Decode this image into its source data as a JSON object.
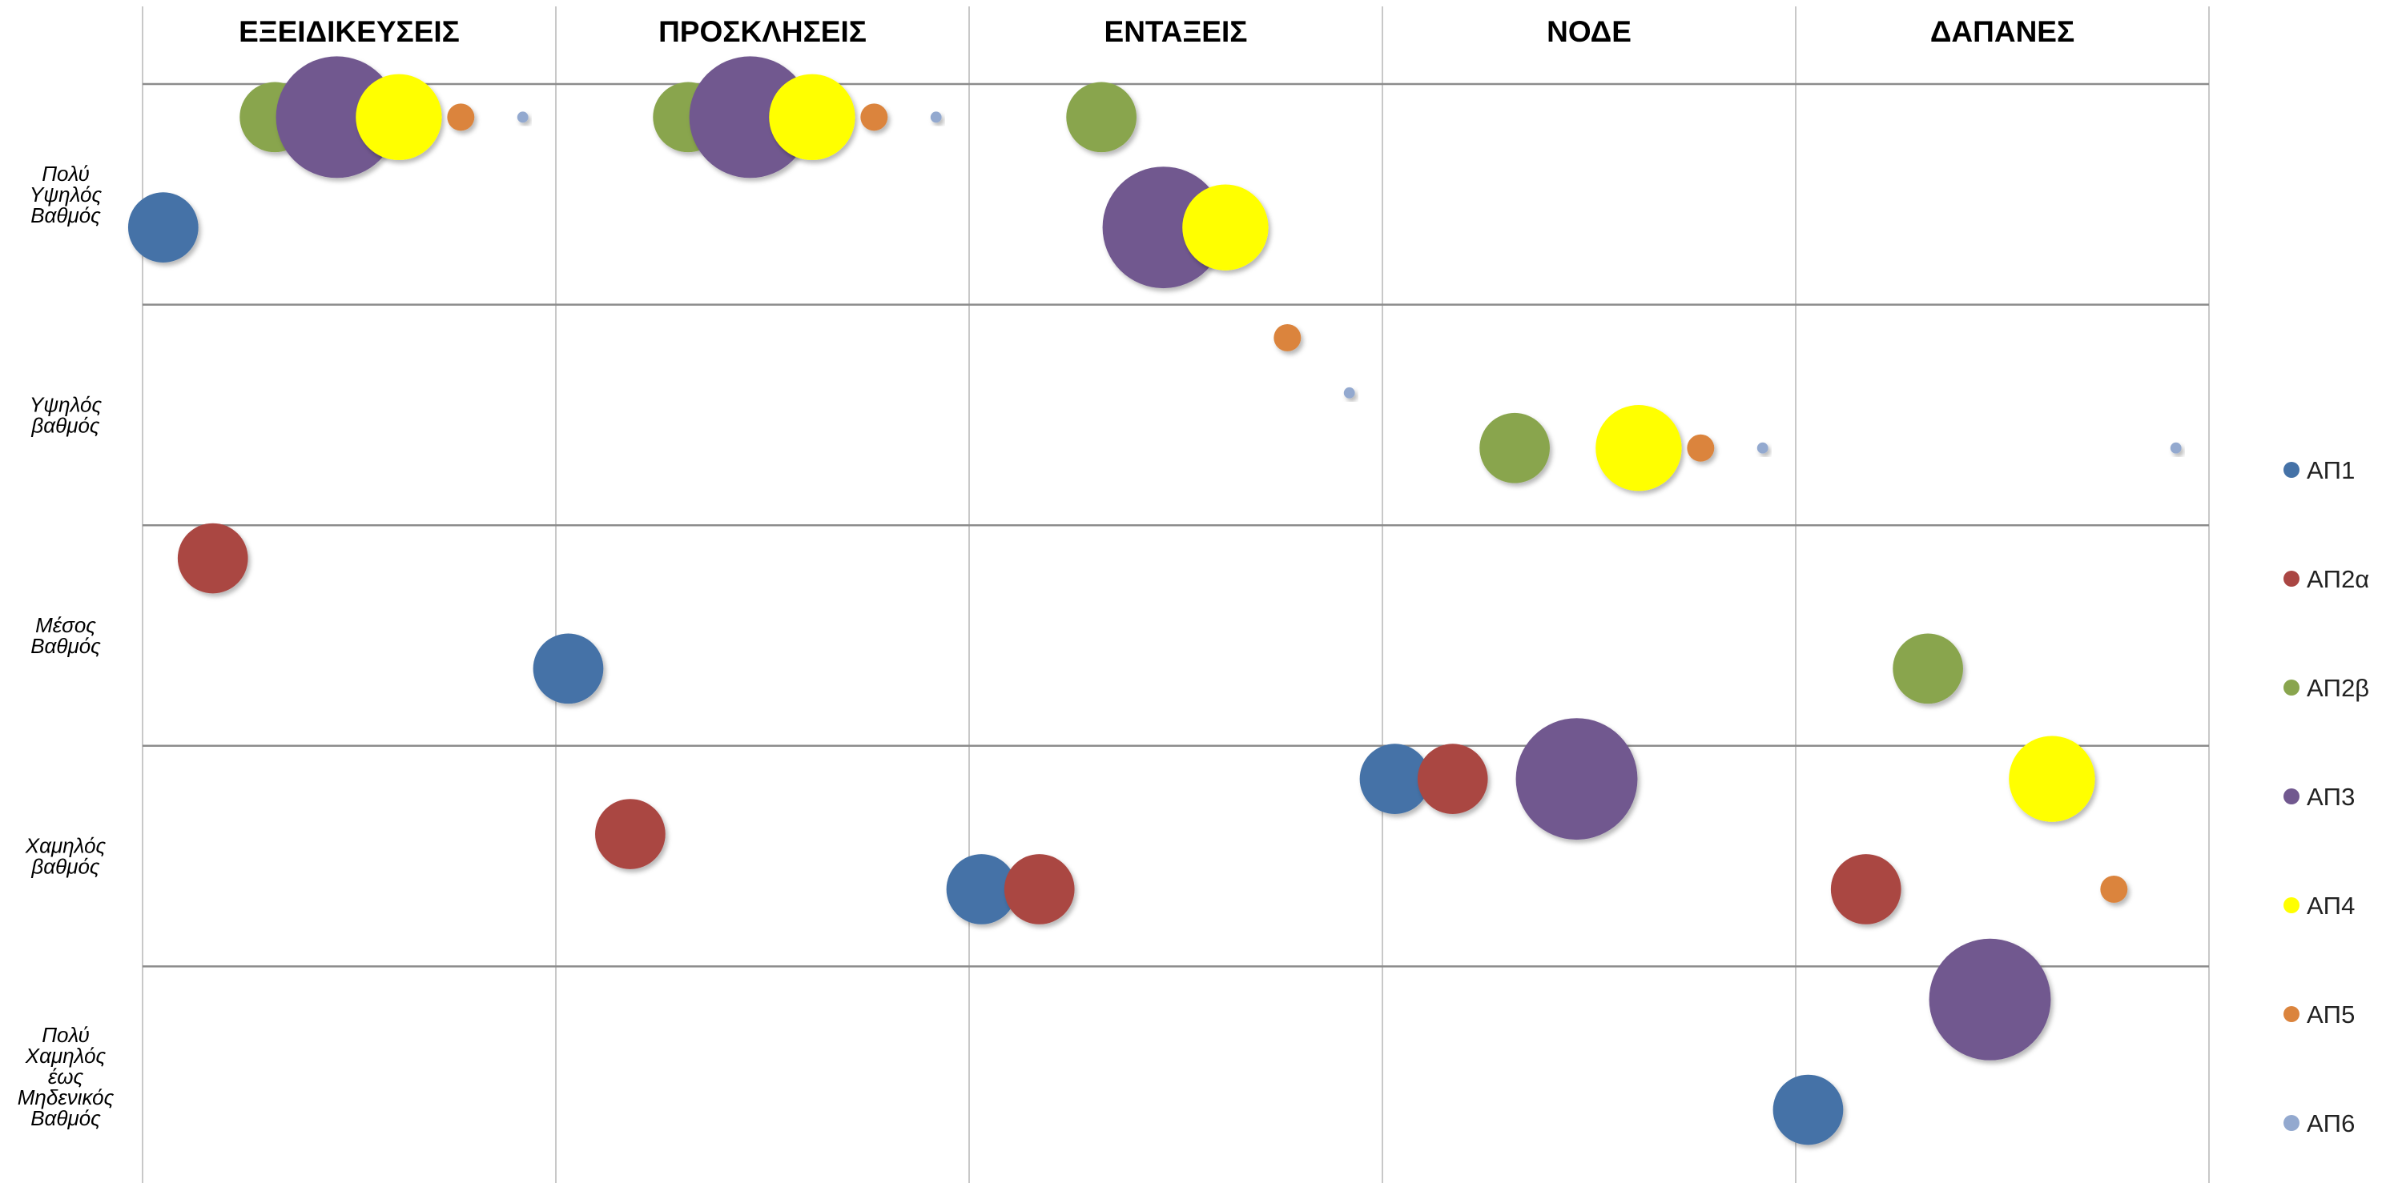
{
  "chart_data": {
    "type": "scatter",
    "columns": [
      "ΕΞΕΙΔΙΚΕΥΣΕΙΣ",
      "ΠΡΟΣΚΛΗΣΕΙΣ",
      "ΕΝΤΑΞΕΙΣ",
      "ΝΟΔΕ",
      "ΔΑΠΑΝΕΣ"
    ],
    "rows": [
      [
        "Πολύ",
        "Υψηλός",
        "Βαθμός"
      ],
      [
        "Υψηλός",
        "βαθμός"
      ],
      [
        "Μέσος",
        "Βαθμός"
      ],
      [
        "Χαμηλός",
        "βαθμός"
      ],
      [
        "Πολύ",
        "Χαμηλός",
        "έως",
        "Μηδενικός",
        "Βαθμός"
      ]
    ],
    "x_range": [
      0,
      5
    ],
    "y_range": [
      0,
      5
    ],
    "grid": true,
    "legend_position": "right",
    "series": [
      {
        "name": "ΑΠ1",
        "color": "#4572A7",
        "points": [
          {
            "x": 0.05,
            "y": 4.35,
            "size": 2
          },
          {
            "x": 1.03,
            "y": 2.35,
            "size": 2
          },
          {
            "x": 2.03,
            "y": 1.35,
            "size": 2
          },
          {
            "x": 3.03,
            "y": 1.85,
            "size": 2
          },
          {
            "x": 4.03,
            "y": 0.35,
            "size": 2
          }
        ]
      },
      {
        "name": "ΑΠ2α",
        "color": "#AA4643",
        "points": [
          {
            "x": 0.17,
            "y": 2.85,
            "size": 2
          },
          {
            "x": 1.18,
            "y": 1.6,
            "size": 2
          },
          {
            "x": 2.17,
            "y": 1.35,
            "size": 2
          },
          {
            "x": 3.17,
            "y": 1.85,
            "size": 2
          },
          {
            "x": 4.17,
            "y": 1.35,
            "size": 2
          }
        ]
      },
      {
        "name": "ΑΠ2β",
        "color": "#89A54E",
        "points": [
          {
            "x": 0.32,
            "y": 4.85,
            "size": 2
          },
          {
            "x": 1.32,
            "y": 4.85,
            "size": 2
          },
          {
            "x": 2.32,
            "y": 4.85,
            "size": 2
          },
          {
            "x": 3.32,
            "y": 3.35,
            "size": 2
          },
          {
            "x": 4.32,
            "y": 2.35,
            "size": 2
          }
        ]
      },
      {
        "name": "ΑΠ3",
        "color": "#71588F",
        "points": [
          {
            "x": 0.47,
            "y": 4.85,
            "size": 6
          },
          {
            "x": 1.47,
            "y": 4.85,
            "size": 6
          },
          {
            "x": 2.47,
            "y": 4.35,
            "size": 6
          },
          {
            "x": 3.47,
            "y": 1.85,
            "size": 6
          },
          {
            "x": 4.47,
            "y": 0.85,
            "size": 6
          }
        ]
      },
      {
        "name": "ΑΠ4",
        "color": "#FFFF00",
        "points": [
          {
            "x": 0.62,
            "y": 4.85,
            "size": 3
          },
          {
            "x": 1.62,
            "y": 4.85,
            "size": 3
          },
          {
            "x": 2.62,
            "y": 4.35,
            "size": 3
          },
          {
            "x": 3.62,
            "y": 3.35,
            "size": 3
          },
          {
            "x": 4.62,
            "y": 1.85,
            "size": 3
          }
        ]
      },
      {
        "name": "ΑΠ5",
        "color": "#DB843D",
        "points": [
          {
            "x": 0.77,
            "y": 4.85,
            "size": 0.3
          },
          {
            "x": 1.77,
            "y": 4.85,
            "size": 0.3
          },
          {
            "x": 2.77,
            "y": 3.85,
            "size": 0.3
          },
          {
            "x": 3.77,
            "y": 3.35,
            "size": 0.3
          },
          {
            "x": 4.77,
            "y": 1.35,
            "size": 0.3
          }
        ]
      },
      {
        "name": "ΑΠ6",
        "color": "#93A9CF",
        "points": [
          {
            "x": 0.92,
            "y": 4.85,
            "size": 0.05
          },
          {
            "x": 1.92,
            "y": 4.85,
            "size": 0.05
          },
          {
            "x": 2.92,
            "y": 3.6,
            "size": 0.05
          },
          {
            "x": 3.92,
            "y": 3.35,
            "size": 0.05
          },
          {
            "x": 4.92,
            "y": 3.35,
            "size": 0.05
          }
        ]
      }
    ]
  }
}
